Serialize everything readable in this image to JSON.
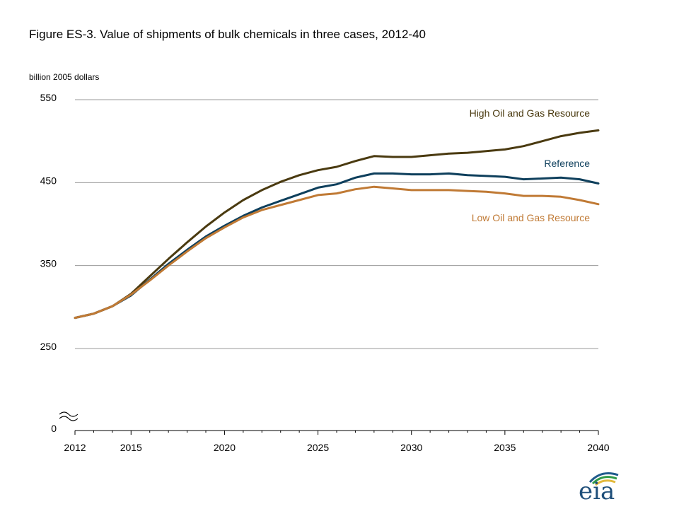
{
  "chart_data": {
    "type": "line",
    "title": "Figure ES-3. Value of shipments of bulk chemicals in three cases, 2012-40",
    "ylabel": "billion 2005 dollars",
    "xlabel": "",
    "xlim": [
      2012,
      2040
    ],
    "ylim": [
      250,
      550
    ],
    "y_break": true,
    "y_ticks": [
      550,
      450,
      350,
      250
    ],
    "y_zero_label": "0",
    "x_ticks": [
      2012,
      2015,
      2020,
      2025,
      2030,
      2035,
      2040
    ],
    "grid": "horizontal",
    "x": [
      2012,
      2013,
      2014,
      2015,
      2016,
      2017,
      2018,
      2019,
      2020,
      2021,
      2022,
      2023,
      2024,
      2025,
      2026,
      2027,
      2028,
      2029,
      2030,
      2031,
      2032,
      2033,
      2034,
      2035,
      2036,
      2037,
      2038,
      2039,
      2040
    ],
    "series": [
      {
        "name": "High Oil and Gas Resource",
        "color": "#4a3a10",
        "values": [
          287,
          292,
          301,
          316,
          337,
          358,
          378,
          397,
          414,
          429,
          441,
          451,
          459,
          465,
          469,
          476,
          482,
          481,
          481,
          483,
          485,
          486,
          488,
          490,
          494,
          500,
          506,
          510,
          513
        ]
      },
      {
        "name": "Reference",
        "color": "#0e3f5c",
        "values": [
          287,
          292,
          301,
          314,
          333,
          352,
          369,
          385,
          398,
          410,
          420,
          428,
          436,
          444,
          448,
          456,
          461,
          461,
          460,
          460,
          461,
          459,
          458,
          457,
          454,
          455,
          456,
          454,
          449
        ]
      },
      {
        "name": "Low Oil and Gas Resource",
        "color": "#c07a35",
        "values": [
          287,
          292,
          301,
          315,
          332,
          350,
          367,
          383,
          396,
          408,
          417,
          423,
          429,
          435,
          437,
          442,
          445,
          443,
          441,
          441,
          441,
          440,
          439,
          437,
          434,
          434,
          433,
          429,
          424
        ]
      }
    ]
  },
  "logo": {
    "text": "eia",
    "colors": [
      "#1f5b8c",
      "#2f9a47",
      "#e3b93c"
    ]
  }
}
